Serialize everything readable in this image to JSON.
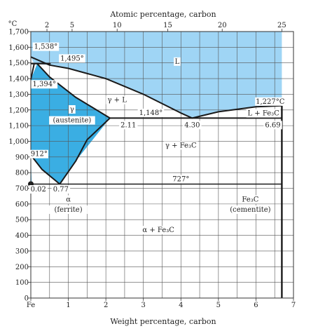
{
  "chart_data": {
    "type": "area",
    "title": "",
    "xlabel": "Weight percentage, carbon",
    "x2label": "Atomic percentage, carbon",
    "ylabel": "°C",
    "xlim": [
      0,
      7
    ],
    "ylim": [
      0,
      1700
    ],
    "x_ticks": [
      {
        "value": 0,
        "label": "Fe"
      },
      {
        "value": 1,
        "label": "1"
      },
      {
        "value": 2,
        "label": "2"
      },
      {
        "value": 3,
        "label": "3"
      },
      {
        "value": 4,
        "label": "4"
      },
      {
        "value": 5,
        "label": "5"
      },
      {
        "value": 6,
        "label": "6"
      },
      {
        "value": 7,
        "label": "7"
      }
    ],
    "y_ticks": [
      0,
      100,
      200,
      300,
      400,
      500,
      600,
      700,
      800,
      900,
      1000,
      1100,
      1200,
      1300,
      1400,
      1500,
      1600,
      1700
    ],
    "y_tick_labels": [
      "0",
      "100",
      "200",
      "300",
      "400",
      "500",
      "600",
      "700",
      "800",
      "900",
      "1,000",
      "1,100",
      "1,200",
      "1,300",
      "1,400",
      "1,500",
      "1,600",
      "1,700"
    ],
    "x2_ticks": [
      {
        "label": "2",
        "wt": 0.43
      },
      {
        "label": "5",
        "wt": 1.1
      },
      {
        "label": "10",
        "wt": 2.3
      },
      {
        "label": "15",
        "wt": 3.65
      },
      {
        "label": "20",
        "wt": 5.1
      },
      {
        "label": "25",
        "wt": 6.69
      }
    ],
    "grid": true,
    "colors": {
      "liquid": "#9fd5f5",
      "austenite": "#3aaee3",
      "phase_line": "#1a1a1a",
      "label_box": "#ffffff"
    },
    "regions": [
      {
        "name": "L",
        "fill": "liquid",
        "points": [
          [
            0,
            1700
          ],
          [
            0,
            1538
          ],
          [
            0.09,
            1495
          ],
          [
            0.5,
            1486
          ],
          [
            1,
            1465
          ],
          [
            2,
            1400
          ],
          [
            3,
            1300
          ],
          [
            4,
            1180
          ],
          [
            4.3,
            1148
          ],
          [
            5,
            1188
          ],
          [
            6,
            1220
          ],
          [
            6.69,
            1227
          ],
          [
            6.69,
            1700
          ]
        ]
      },
      {
        "name": "γ (austenite)",
        "fill": "austenite",
        "points": [
          [
            0,
            1394
          ],
          [
            0.17,
            1495
          ],
          [
            0.5,
            1410
          ],
          [
            1.2,
            1280
          ],
          [
            2.11,
            1148
          ],
          [
            1.2,
            875
          ],
          [
            0.77,
            727
          ],
          [
            0.3,
            820
          ],
          [
            0,
            912
          ]
        ]
      },
      {
        "name": "α (ferrite)",
        "fill": "austenite",
        "points": [
          [
            0,
            912
          ],
          [
            0.022,
            727
          ],
          [
            0.022,
            700
          ],
          [
            0,
            680
          ]
        ]
      }
    ],
    "lines": [
      {
        "name": "liquidus",
        "points": [
          [
            0,
            1538
          ],
          [
            0.5,
            1486
          ],
          [
            1,
            1465
          ],
          [
            2,
            1400
          ],
          [
            3,
            1300
          ],
          [
            4,
            1180
          ],
          [
            4.3,
            1148
          ],
          [
            5,
            1188
          ],
          [
            6,
            1220
          ],
          [
            6.69,
            1227
          ]
        ]
      },
      {
        "name": "peritectic",
        "points": [
          [
            0,
            1495
          ],
          [
            0.53,
            1495
          ]
        ]
      },
      {
        "name": "solidus",
        "points": [
          [
            0.17,
            1495
          ],
          [
            0.5,
            1410
          ],
          [
            1.2,
            1280
          ],
          [
            2.11,
            1148
          ]
        ]
      },
      {
        "name": "eutectic",
        "points": [
          [
            2.11,
            1148
          ],
          [
            6.69,
            1148
          ]
        ]
      },
      {
        "name": "acm",
        "points": [
          [
            2.11,
            1148
          ],
          [
            1.5,
            1010
          ],
          [
            1.2,
            875
          ],
          [
            0.77,
            727
          ]
        ]
      },
      {
        "name": "a3",
        "points": [
          [
            0,
            912
          ],
          [
            0.3,
            820
          ],
          [
            0.77,
            727
          ]
        ]
      },
      {
        "name": "delta-gamma",
        "points": [
          [
            0,
            1394
          ],
          [
            0.09,
            1495
          ]
        ]
      },
      {
        "name": "eutectoid",
        "points": [
          [
            0,
            727
          ],
          [
            6.69,
            727
          ]
        ]
      },
      {
        "name": "ferrite-solvus",
        "points": [
          [
            0.022,
            727
          ],
          [
            0.022,
            700
          ],
          [
            0,
            680
          ]
        ]
      },
      {
        "name": "cementite",
        "points": [
          [
            6.69,
            0
          ],
          [
            6.69,
            1227
          ]
        ]
      }
    ],
    "annotations": [
      {
        "text": "1,538°",
        "x": 0.4,
        "y": 1590
      },
      {
        "text": "1,495°",
        "x": 1.1,
        "y": 1515
      },
      {
        "text": "1,394°",
        "x": 0.36,
        "y": 1350
      },
      {
        "text": "L",
        "x": 3.9,
        "y": 1495
      },
      {
        "text": "γ + L",
        "x": 2.3,
        "y": 1250
      },
      {
        "text": "γ",
        "x": 1.1,
        "y": 1190
      },
      {
        "text": "(austenite)",
        "x": 1.1,
        "y": 1120
      },
      {
        "text": "1,148°",
        "x": 3.2,
        "y": 1168
      },
      {
        "text": "2.11",
        "x": 2.6,
        "y": 1090
      },
      {
        "text": "4.30",
        "x": 4.3,
        "y": 1090
      },
      {
        "text": "1,227°C",
        "x": 6.38,
        "y": 1240
      },
      {
        "text": "L + Fe₃C",
        "x": 6.2,
        "y": 1165
      },
      {
        "text": "6.69",
        "x": 6.45,
        "y": 1090
      },
      {
        "text": "912°",
        "x": 0.22,
        "y": 905
      },
      {
        "text": "γ + Fe₃C",
        "x": 4.0,
        "y": 960
      },
      {
        "text": "727°",
        "x": 4.0,
        "y": 745
      },
      {
        "text": "0.02",
        "x": 0.2,
        "y": 680
      },
      {
        "text": "0.77",
        "x": 0.8,
        "y": 680
      },
      {
        "text": "α",
        "x": 1.0,
        "y": 615
      },
      {
        "text": "(ferrite)",
        "x": 1.0,
        "y": 550
      },
      {
        "text": "Fe₃C",
        "x": 5.85,
        "y": 615
      },
      {
        "text": "(cementite)",
        "x": 5.85,
        "y": 550
      },
      {
        "text": "α + Fe₃C",
        "x": 3.4,
        "y": 420
      }
    ]
  }
}
